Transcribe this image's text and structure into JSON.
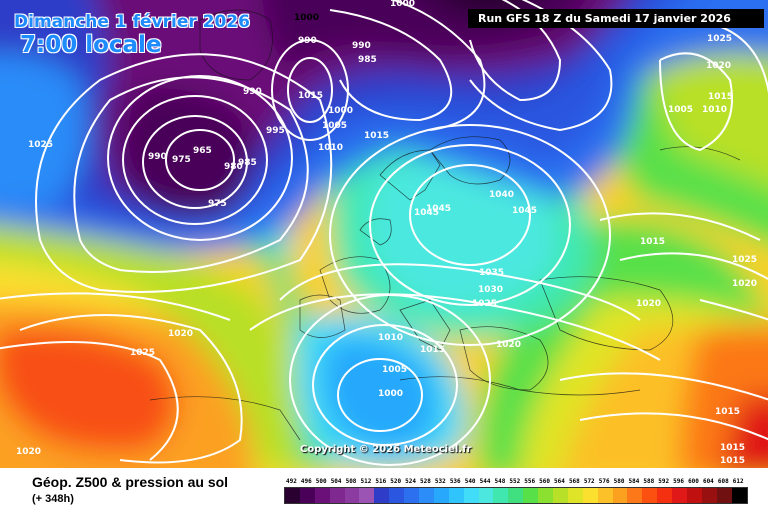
{
  "header": {
    "date": "Dimanche 1 février 2026",
    "time": "7:00 locale",
    "run": "Run GFS 18 Z du Samedi 17 janvier 2026"
  },
  "copyright": "Copyright © 2026 Meteociel.fr",
  "legend": {
    "title": "Géop. Z500 & pression au sol",
    "subtitle": "(+ 348h)",
    "scale": [
      "492",
      "496",
      "500",
      "504",
      "508",
      "512",
      "516",
      "520",
      "524",
      "528",
      "532",
      "536",
      "540",
      "544",
      "548",
      "552",
      "556",
      "560",
      "564",
      "568",
      "572",
      "576",
      "580",
      "584",
      "588",
      "592",
      "596",
      "600",
      "604",
      "608",
      "612"
    ],
    "colors": [
      "#2a0030",
      "#4a0058",
      "#6a1078",
      "#7e2890",
      "#8c3ca0",
      "#9c54b4",
      "#2e3cc8",
      "#2a56e0",
      "#2c70f0",
      "#2c8cf8",
      "#28a8fc",
      "#30c4fc",
      "#40dcf8",
      "#4ce8e0",
      "#40e8b0",
      "#40e080",
      "#58e048",
      "#8ce030",
      "#b8e028",
      "#e0e428",
      "#fce030",
      "#fcc028",
      "#fca020",
      "#fc7818",
      "#fc5010",
      "#f43010",
      "#e01818",
      "#c01010",
      "#981010",
      "#701010",
      "#000000"
    ]
  },
  "isobars": [
    {
      "text": "1000",
      "color": "dark"
    },
    {
      "text": "990"
    },
    {
      "text": "1000"
    },
    {
      "text": "990"
    },
    {
      "text": "985"
    },
    {
      "text": "1025"
    },
    {
      "text": "1020"
    },
    {
      "text": "990"
    },
    {
      "text": "1015"
    },
    {
      "text": "1000"
    },
    {
      "text": "1005"
    },
    {
      "text": "1015"
    },
    {
      "text": "995"
    },
    {
      "text": "1010"
    },
    {
      "text": "1025"
    },
    {
      "text": "990"
    },
    {
      "text": "975"
    },
    {
      "text": "965"
    },
    {
      "text": "980"
    },
    {
      "text": "985"
    },
    {
      "text": "975"
    },
    {
      "text": "1040"
    },
    {
      "text": "1045"
    },
    {
      "text": "1045"
    },
    {
      "text": "1045"
    },
    {
      "text": "1035"
    },
    {
      "text": "1030"
    },
    {
      "text": "1025"
    },
    {
      "text": "1020"
    },
    {
      "text": "1020"
    },
    {
      "text": "1020"
    },
    {
      "text": "1025"
    },
    {
      "text": "1010"
    },
    {
      "text": "1015"
    },
    {
      "text": "1005"
    },
    {
      "text": "1000"
    },
    {
      "text": "1020"
    },
    {
      "text": "1015"
    },
    {
      "text": "1015"
    },
    {
      "text": "1015"
    },
    {
      "text": "1025"
    },
    {
      "text": "1020"
    },
    {
      "text": "1010"
    },
    {
      "text": "1005"
    },
    {
      "text": "1015"
    },
    {
      "text": "1015"
    }
  ]
}
